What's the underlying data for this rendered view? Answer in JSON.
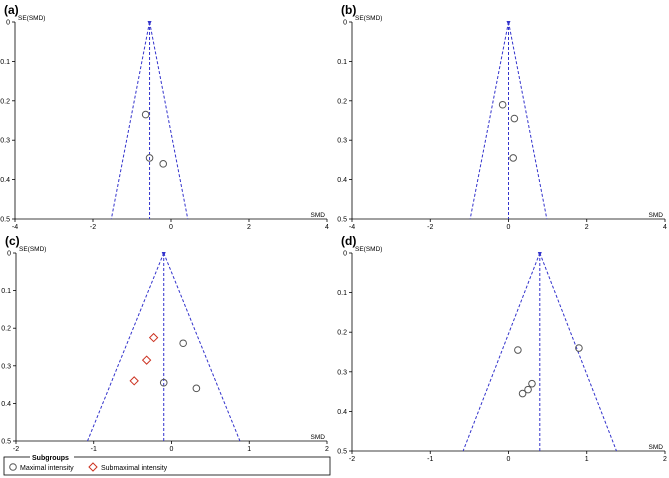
{
  "legend": {
    "title": "Subgroups",
    "items": [
      {
        "label": "Maximal intensity",
        "marker": "circle",
        "color": "#555555"
      },
      {
        "label": "Submaximal intensity",
        "marker": "diamond",
        "color": "#cc3322"
      }
    ]
  },
  "colors": {
    "funnel": "#3333cc",
    "point": "#555555",
    "axis": "#000000"
  },
  "chart_data": [
    {
      "panel": "(a)",
      "type": "scatter",
      "xlabel": "SMD",
      "ylabel": "SE(SMD)",
      "xlim": [
        -4,
        4
      ],
      "ylim": [
        0,
        0.5
      ],
      "y_inverted": true,
      "xticks": [
        -4,
        -2,
        0,
        2,
        4
      ],
      "yticks": [
        0,
        0.1,
        0.2,
        0.3,
        0.4,
        0.5
      ],
      "pooled_smd": -0.55,
      "series": [
        {
          "marker": "circle",
          "points": [
            {
              "x": -0.65,
              "y": 0.235
            },
            {
              "x": -0.55,
              "y": 0.345
            },
            {
              "x": -0.2,
              "y": 0.36
            }
          ]
        }
      ]
    },
    {
      "panel": "(b)",
      "type": "scatter",
      "xlabel": "SMD",
      "ylabel": "SE(SMD)",
      "xlim": [
        -4,
        4
      ],
      "ylim": [
        0,
        0.5
      ],
      "y_inverted": true,
      "xticks": [
        -4,
        -2,
        0,
        2,
        4
      ],
      "yticks": [
        0,
        0.1,
        0.2,
        0.3,
        0.4,
        0.5
      ],
      "pooled_smd": 0.0,
      "series": [
        {
          "marker": "circle",
          "points": [
            {
              "x": -0.15,
              "y": 0.21
            },
            {
              "x": 0.15,
              "y": 0.245
            },
            {
              "x": 0.12,
              "y": 0.345
            }
          ]
        }
      ]
    },
    {
      "panel": "(c)",
      "type": "scatter",
      "xlabel": "SMD",
      "ylabel": "SE(SMD)",
      "xlim": [
        -2,
        2
      ],
      "ylim": [
        0,
        0.5
      ],
      "y_inverted": true,
      "xticks": [
        -2,
        -1,
        0,
        1,
        2
      ],
      "yticks": [
        0,
        0.1,
        0.2,
        0.3,
        0.4,
        0.5
      ],
      "pooled_smd": -0.1,
      "series": [
        {
          "name": "Maximal intensity",
          "marker": "circle",
          "points": [
            {
              "x": 0.15,
              "y": 0.24
            },
            {
              "x": -0.1,
              "y": 0.345
            },
            {
              "x": 0.32,
              "y": 0.36
            }
          ]
        },
        {
          "name": "Submaximal intensity",
          "marker": "diamond",
          "points": [
            {
              "x": -0.23,
              "y": 0.225
            },
            {
              "x": -0.32,
              "y": 0.285
            },
            {
              "x": -0.48,
              "y": 0.34
            }
          ]
        }
      ]
    },
    {
      "panel": "(d)",
      "type": "scatter",
      "xlabel": "SMD",
      "ylabel": "SE(SMD)",
      "xlim": [
        -2,
        2
      ],
      "ylim": [
        0,
        0.5
      ],
      "y_inverted": true,
      "xticks": [
        -2,
        -1,
        0,
        1,
        2
      ],
      "yticks": [
        0,
        0.1,
        0.2,
        0.3,
        0.4,
        0.5
      ],
      "pooled_smd": 0.4,
      "series": [
        {
          "marker": "circle",
          "points": [
            {
              "x": 0.12,
              "y": 0.245
            },
            {
              "x": 0.9,
              "y": 0.24
            },
            {
              "x": 0.3,
              "y": 0.33
            },
            {
              "x": 0.25,
              "y": 0.345
            },
            {
              "x": 0.18,
              "y": 0.355
            }
          ]
        }
      ]
    }
  ]
}
